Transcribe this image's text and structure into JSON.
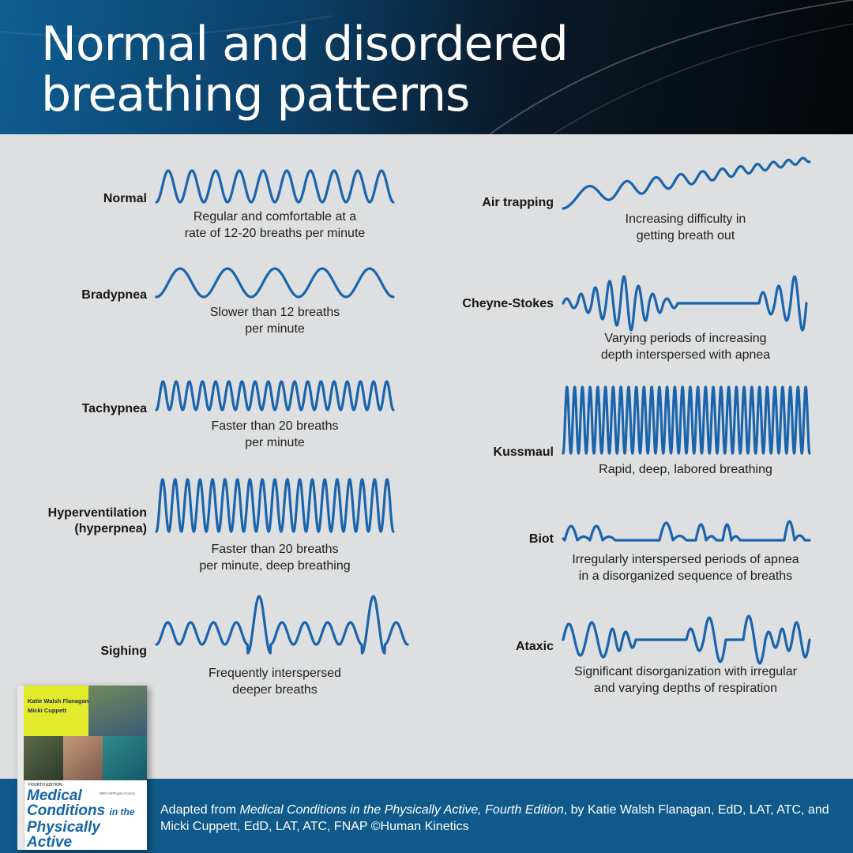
{
  "title_line1": "Normal and disordered",
  "title_line2": "breathing patterns",
  "colors": {
    "wave": "#1a64ad",
    "footer": "#0f5a8a",
    "background": "#dedfe0"
  },
  "patterns": {
    "normal": {
      "label": "Normal",
      "desc1": "Regular and comfortable at a",
      "desc2": "rate of 12-20 breaths per minute"
    },
    "bradypnea": {
      "label": "Bradypnea",
      "desc1": "Slower than 12 breaths",
      "desc2": "per minute"
    },
    "tachypnea": {
      "label": "Tachypnea",
      "desc1": "Faster than 20 breaths",
      "desc2": "per minute"
    },
    "hyperventilation": {
      "label1": "Hyperventilation",
      "label2": "(hyperpnea)",
      "desc1": "Faster than 20 breaths",
      "desc2": "per minute, deep breathing"
    },
    "sighing": {
      "label": "Sighing",
      "desc1": "Frequently interspersed",
      "desc2": "deeper breaths"
    },
    "air_trapping": {
      "label": "Air trapping",
      "desc1": "Increasing difficulty in",
      "desc2": "getting breath out"
    },
    "cheyne_stokes": {
      "label": "Cheyne-Stokes",
      "desc1": "Varying periods of increasing",
      "desc2": "depth interspersed with apnea"
    },
    "kussmaul": {
      "label": "Kussmaul",
      "desc1": "Rapid, deep, labored breathing"
    },
    "biot": {
      "label": "Biot",
      "desc1": "Irregularly interspersed periods of apnea",
      "desc2": "in a disorganized sequence of breaths"
    },
    "ataxic": {
      "label": "Ataxic",
      "desc1": "Significant disorganization with irregular",
      "desc2": "and varying depths of respiration"
    }
  },
  "citation": {
    "prefix": "Adapted from ",
    "work": "Medical Conditions in the Physically Active, Fourth Edition",
    "suffix": ", by Katie Walsh Flanagan, EdD, LAT, ATC, and Micki Cuppett, EdD, LAT, ATC, FNAP ©Human Kinetics"
  },
  "book": {
    "author1": "Katie Walsh Flanagan",
    "author2": "Micki Cuppett",
    "edition": "FOURTH EDITION",
    "access": "With HKPropel Access",
    "title1": "Medical",
    "title2": "Conditions",
    "title3": "in the",
    "title4": "Physically Active"
  }
}
